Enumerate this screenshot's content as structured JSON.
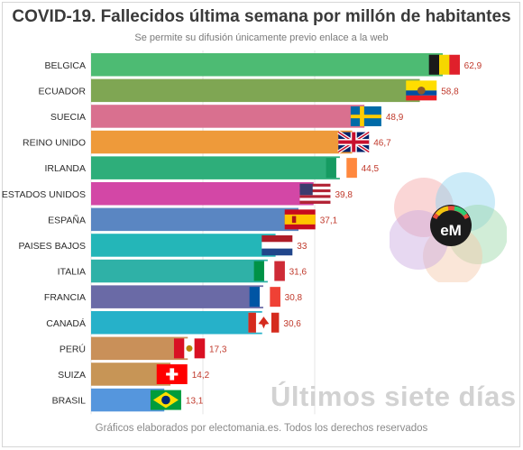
{
  "header": {
    "title": "COVID-19. Fallecidos última semana por millón de habitantes",
    "subtitle": "Se permite su difusión únicamente previo enlace a la web"
  },
  "footer": {
    "credit": "Gráficos elaborados por electomania.es. Todos los derechos reservados",
    "watermark": "Últimos siete días"
  },
  "logo": {
    "text": "eM"
  },
  "chart_data": {
    "type": "bar",
    "orientation": "horizontal",
    "title": "COVID-19. Fallecidos última semana por millón de habitantes",
    "categories": [
      "BELGICA",
      "ECUADOR",
      "SUECIA",
      "REINO UNIDO",
      "IRLANDA",
      "ESTADOS UNIDOS",
      "ESPAÑA",
      "PAISES BAJOS",
      "ITALIA",
      "FRANCIA",
      "CANADÁ",
      "PERÚ",
      "SUIZA",
      "BRASIL"
    ],
    "values": [
      62.9,
      58.8,
      48.9,
      46.7,
      44.5,
      39.8,
      37.1,
      33,
      31.6,
      30.8,
      30.6,
      17.3,
      14.2,
      13.1
    ],
    "value_labels": [
      "62,9",
      "58,8",
      "48,9",
      "46,7",
      "44,5",
      "39,8",
      "37,1",
      "33",
      "31,6",
      "30,8",
      "30,6",
      "17,3",
      "14,2",
      "13,1"
    ],
    "colors": [
      "#4dbb73",
      "#7fa653",
      "#d9708f",
      "#ee9a3a",
      "#2eae7a",
      "#d347a6",
      "#5a86c2",
      "#24b6b8",
      "#2fb1a7",
      "#6a6aa6",
      "#26b1c9",
      "#c99059",
      "#c79556",
      "#5596dd"
    ],
    "flags": [
      "belgium",
      "ecuador",
      "sweden",
      "united-kingdom",
      "ireland",
      "united-states",
      "spain",
      "netherlands",
      "italy",
      "france",
      "canada",
      "peru",
      "switzerland",
      "brazil"
    ],
    "xlim": [
      0,
      65
    ],
    "grid": true,
    "value_label_color": "#c0392b"
  }
}
